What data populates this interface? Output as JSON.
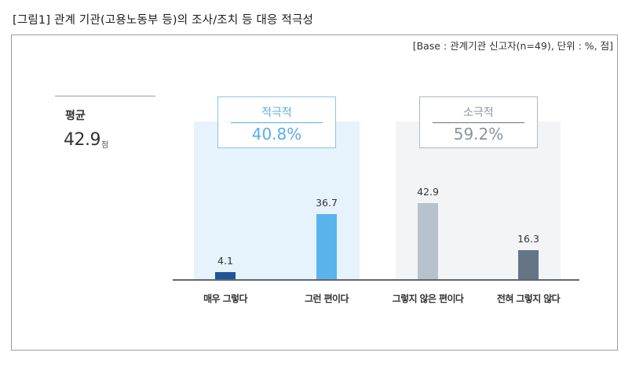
{
  "figure": {
    "title": "[그림1] 관계 기관(고용노동부 등)의 조사/조치 등 대응 적극성",
    "base_note": "[Base : 관계기관 신고자(n=49), 단위 : %, 점]"
  },
  "average": {
    "label": "평균",
    "value": "42.9",
    "unit": "점"
  },
  "groups": [
    {
      "name": "적극적",
      "percent": "40.8%",
      "color": "#5aaee6",
      "panel_color": "#e6f2fc"
    },
    {
      "name": "소극적",
      "percent": "59.2%",
      "color": "#8a949e",
      "panel_color": "#f3f4f6"
    }
  ],
  "bars": [
    {
      "category": "매우 그렇다",
      "value": "4.1",
      "color": "#1f5499"
    },
    {
      "category": "그런 편이다",
      "value": "36.7",
      "color": "#5ab4ec"
    },
    {
      "category": "그렇지 않은 편이다",
      "value": "42.9",
      "color": "#b8c2cc"
    },
    {
      "category": "전혀 그렇지 않다",
      "value": "16.3",
      "color": "#647585"
    }
  ],
  "chart_data": {
    "type": "bar",
    "title": "[그림1] 관계 기관(고용노동부 등)의 조사/조치 등 대응 적극성",
    "subtitle": "[Base : 관계기관 신고자(n=49), 단위 : %, 점]",
    "categories": [
      "매우 그렇다",
      "그런 편이다",
      "그렇지 않은 편이다",
      "전혀 그렇지 않다"
    ],
    "values": [
      4.1,
      36.7,
      42.9,
      16.3
    ],
    "xlabel": "",
    "ylabel": "%",
    "ylim": [
      0,
      50
    ],
    "grid": false,
    "legend": "none",
    "annotations": [
      {
        "text": "평균 42.9 점"
      },
      {
        "group": "적극적",
        "covers": [
          "매우 그렇다",
          "그런 편이다"
        ],
        "value": "40.8%"
      },
      {
        "group": "소극적",
        "covers": [
          "그렇지 않은 편이다",
          "전혀 그렇지 않다"
        ],
        "value": "59.2%"
      }
    ]
  }
}
